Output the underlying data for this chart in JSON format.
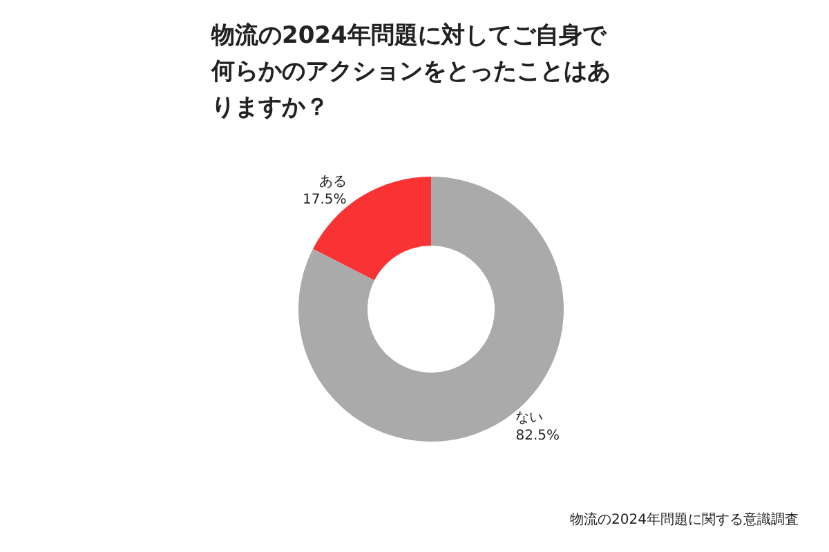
{
  "chart_data": {
    "type": "donut",
    "title": "物流の2024年問題に対してご自身で何らかのアクションをとったことはありますか？",
    "categories": [
      "ある",
      "ない"
    ],
    "values": [
      17.5,
      82.5
    ],
    "value_labels": [
      "17.5%",
      "82.5%"
    ],
    "colors": [
      "#f93333",
      "#aaaaaa"
    ],
    "annotations": [
      "物流の2024年問題に関する意識調査"
    ],
    "legend": false
  }
}
